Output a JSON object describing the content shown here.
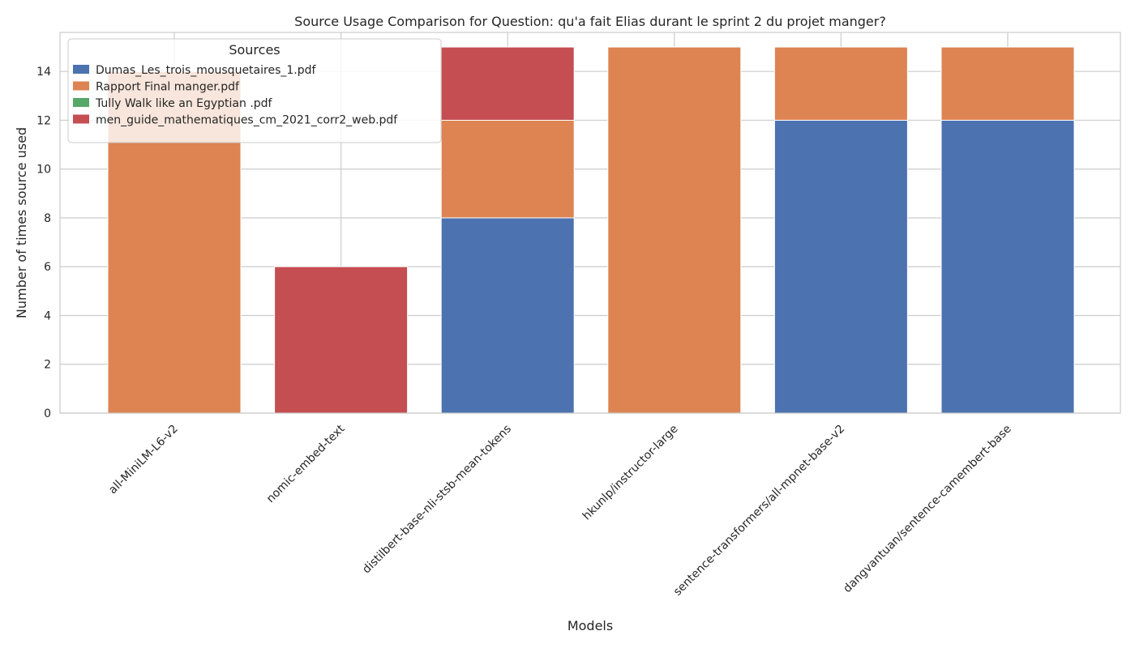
{
  "chart_data": {
    "type": "bar",
    "stacked": true,
    "title": "Source Usage Comparison for Question: qu'a fait Elias durant le sprint 2 du projet manger?",
    "xlabel": "Models",
    "ylabel": "Number of times source used",
    "ylim": [
      0,
      15.6
    ],
    "yticks": [
      0,
      2,
      4,
      6,
      8,
      10,
      12,
      14
    ],
    "grid": true,
    "legend_title": "Sources",
    "legend_position": "top-left",
    "categories": [
      "all-MiniLM-L6-v2",
      "nomic-embed-text",
      "distilbert-base-nli-stsb-mean-tokens",
      "hkunlp/instructor-large",
      "sentence-transformers/all-mpnet-base-v2",
      "dangvantuan/sentence-camembert-base"
    ],
    "series": [
      {
        "name": "Dumas_Les_trois_mousquetaires_1.pdf",
        "color": "#4c72b0",
        "values": [
          0,
          0,
          8,
          0,
          12,
          12
        ]
      },
      {
        "name": "Rapport Final manger.pdf",
        "color": "#dd8452",
        "values": [
          14,
          0,
          4,
          15,
          3,
          3
        ]
      },
      {
        "name": "Tully Walk like an Egyptian .pdf",
        "color": "#55a868",
        "values": [
          0,
          0,
          0,
          0,
          0,
          0
        ]
      },
      {
        "name": "men_guide_mathematiques_cm_2021_corr2_web.pdf",
        "color": "#c44e52",
        "values": [
          0,
          6,
          3,
          0,
          0,
          0
        ]
      }
    ]
  }
}
